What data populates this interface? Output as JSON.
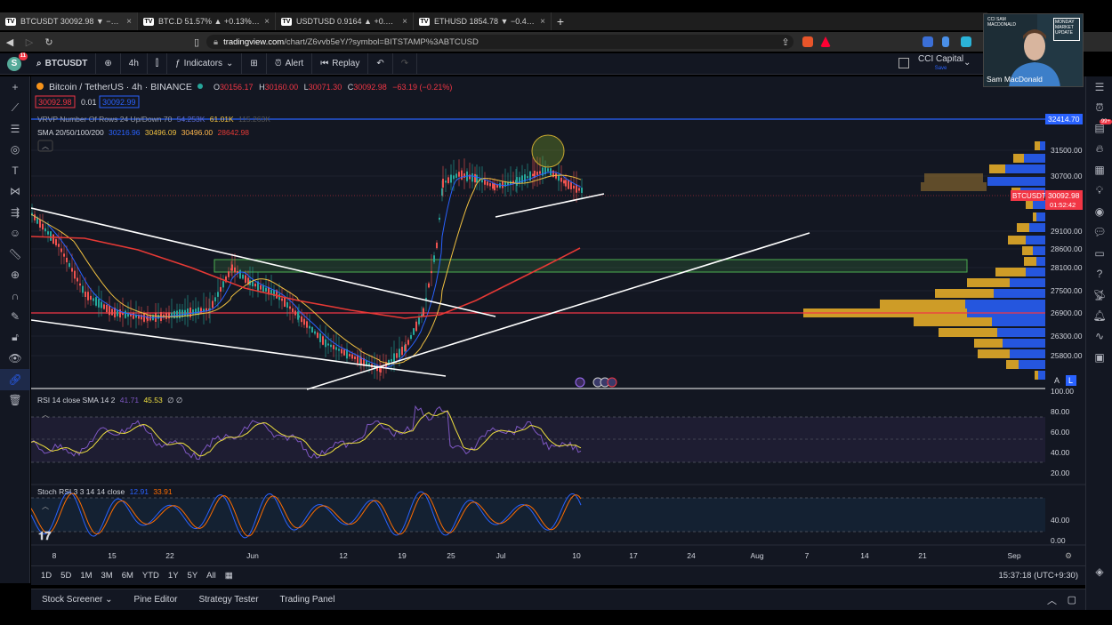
{
  "browser": {
    "tabs": [
      {
        "title": "BTCUSDT 30092.98 ▼ −0.22% CCI",
        "close": "×",
        "active": true
      },
      {
        "title": "BTC.D 51.57% ▲ +0.13% CCI Capital",
        "close": "×"
      },
      {
        "title": "USDTUSD 0.9164 ▲ +0.36% CCI Capi",
        "close": "×"
      },
      {
        "title": "ETHUSD 1854.78 ▼ −0.46% CCI Capit",
        "close": "×"
      }
    ],
    "new_tab": "+",
    "url_host": "tradingview.com",
    "url_path": "/chart/Z6vvb5eY/?symbol=BITSTAMP%3ABTCUSD"
  },
  "toolbar": {
    "avatar_letter": "S",
    "avatar_badge": "11",
    "symbol": "BTCUSDT",
    "interval": "4h",
    "indicators": "Indicators",
    "alert": "Alert",
    "replay": "Replay",
    "account_name": "CCI Capital",
    "account_status": "Save"
  },
  "legend": {
    "title": "Bitcoin / TetherUS · 4h · BINANCE",
    "o_label": "O",
    "o": "30156.17",
    "h_label": "H",
    "h": "30160.00",
    "l_label": "L",
    "l": "30071.30",
    "c_label": "C",
    "c": "30092.98",
    "change": "−63.19 (−0.21%)",
    "sell": "30092.98",
    "spread": "0.01",
    "buy": "30092.99",
    "vrvp": "VRVP Number Of Rows 24 Up/Down 70",
    "vrvp_v1": "54.253K",
    "vrvp_v2": "61.01K",
    "vrvp_v3": "115.263K",
    "sma": "SMA 20/50/100/200",
    "sma_v1": "30216.96",
    "sma_v2": "30496.09",
    "sma_v3": "30496.00",
    "sma_v4": "28642.98"
  },
  "price_axis": {
    "labels": [
      "31500.00",
      "30700.00",
      "29100.00",
      "28600.00",
      "28100.00",
      "27500.00",
      "26900.00",
      "26300.00",
      "25800.00"
    ],
    "level_tag": "32414.70",
    "symbol_tag": "BTCUSDT",
    "price_tag": "30092.98",
    "countdown": "01:52:42",
    "auto": "A",
    "log": "L"
  },
  "rsi": {
    "label": "RSI 14 close SMA 14 2",
    "v1": "41.71",
    "v2": "45.53",
    "v3": "∅ ∅",
    "axis": [
      "100.00",
      "80.00",
      "60.00",
      "40.00",
      "20.00"
    ]
  },
  "stoch": {
    "label": "Stoch RSI 3 3 14 14 close",
    "v1": "12.91",
    "v2": "33.91",
    "axis": [
      "40.00",
      "0.00"
    ]
  },
  "time_axis": [
    "8",
    "15",
    "22",
    "Jun",
    "12",
    "19",
    "25",
    "Jul",
    "10",
    "17",
    "24",
    "Aug",
    "7",
    "14",
    "21",
    "Sep"
  ],
  "ranges": [
    "1D",
    "5D",
    "1M",
    "3M",
    "6M",
    "YTD",
    "1Y",
    "5Y",
    "All"
  ],
  "clock": "15:37:18 (UTC+9:30)",
  "bottom_tabs": [
    "Stock Screener",
    "Pine Editor",
    "Strategy Tester",
    "Trading Panel"
  ],
  "webcam": {
    "name": "Sam MacDonald",
    "logo": "CCI SAM MACDONALD",
    "badge": "MONDAY MARKET UPDATE"
  }
}
